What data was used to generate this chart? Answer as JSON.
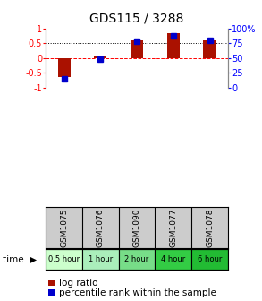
{
  "title": "GDS115 / 3288",
  "samples": [
    "GSM1075",
    "GSM1076",
    "GSM1090",
    "GSM1077",
    "GSM1078"
  ],
  "time_labels": [
    "0.5 hour",
    "1 hour",
    "2 hour",
    "4 hour",
    "6 hour"
  ],
  "time_colors": [
    "#ccffcc",
    "#aaeebb",
    "#77dd88",
    "#33cc44",
    "#22bb33"
  ],
  "log_ratios": [
    -0.63,
    0.08,
    0.6,
    0.85,
    0.6
  ],
  "percentile_ranks": [
    15,
    49,
    78,
    88,
    80
  ],
  "bar_color": "#aa1100",
  "dot_color": "#0000cc",
  "ylim": [
    -1,
    1
  ],
  "y2lim": [
    0,
    100
  ],
  "yticks": [
    -1,
    -0.5,
    0,
    0.5,
    1
  ],
  "ytick_labels": [
    "-1",
    "-0.5",
    "0",
    "0.5",
    "1"
  ],
  "y2ticks": [
    0,
    25,
    50,
    75,
    100
  ],
  "y2tick_labels": [
    "0",
    "25",
    "50",
    "75",
    "100%"
  ],
  "background_color": "#ffffff",
  "sample_bg": "#cccccc",
  "legend_log_ratio_label": "log ratio",
  "legend_percentile_label": "percentile rank within the sample"
}
